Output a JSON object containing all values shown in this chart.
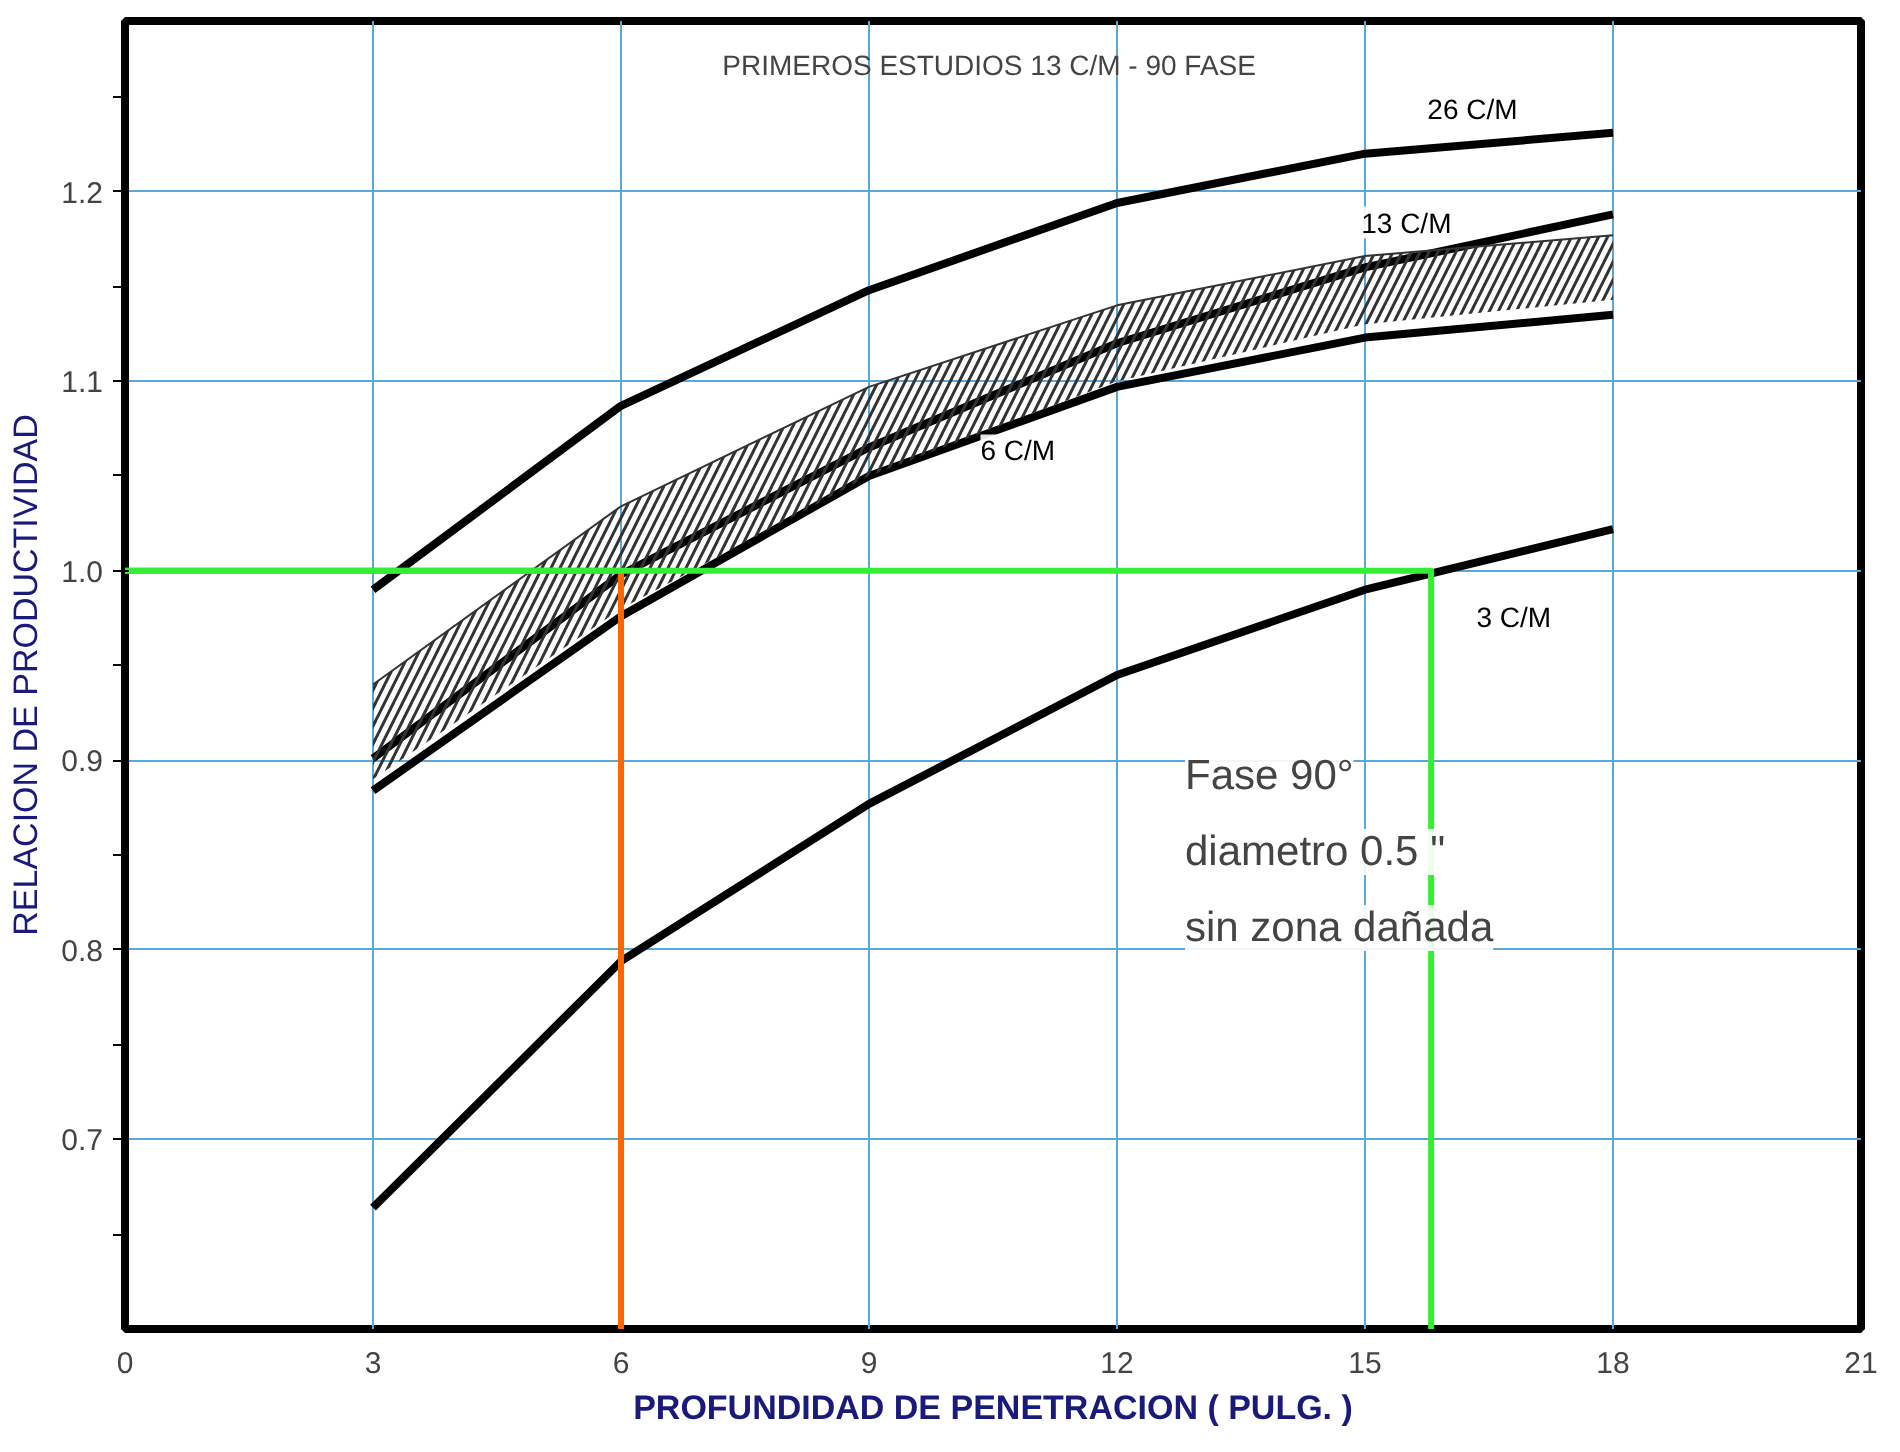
{
  "chart_data": {
    "type": "line",
    "title": "PRIMEROS ESTUDIOS 13 C/M - 90  FASE",
    "xlabel": "PROFUNDIDAD DE PENETRACION ( PULG. )",
    "ylabel": "RELACION DE PRODUCTIVIDAD",
    "x": [
      3,
      6,
      9,
      12,
      15,
      18
    ],
    "series": [
      {
        "name": "26 C/M",
        "color": "#000000",
        "values": [
          0.99,
          1.087,
          1.148,
          1.194,
          1.22,
          1.231
        ]
      },
      {
        "name": "13 C/M",
        "color": "#000000",
        "values": [
          0.901,
          0.998,
          1.065,
          1.12,
          1.16,
          1.188
        ]
      },
      {
        "name": "6 C/M",
        "color": "#000000",
        "values": [
          0.884,
          0.976,
          1.05,
          1.097,
          1.123,
          1.135
        ]
      },
      {
        "name": "3 C/M",
        "color": "#000000",
        "values": [
          0.664,
          0.794,
          0.877,
          0.945,
          0.99,
          1.022
        ]
      },
      {
        "color": "#333333",
        "values": [
          0.94,
          1.034,
          1.097,
          1.14,
          1.166,
          1.177
        ],
        "lower": [
          0.89,
          0.98,
          1.05,
          1.1,
          1.13,
          1.143
        ],
        "upper": [
          0.94,
          1.034,
          1.097,
          1.14,
          1.166,
          1.177
        ]
      },
      {
        "color": "#ff6600",
        "x": [
          0,
          6,
          6
        ],
        "values": [
          1.0,
          1.0,
          0.6
        ]
      },
      {
        "color": "#33ee33",
        "x": [
          0,
          15.8,
          15.8
        ],
        "values": [
          1.0,
          1.0,
          0.6
        ]
      }
    ],
    "annotations": [
      "Fase 90°",
      "diametro 0.5 \"",
      "sin zona dañada"
    ],
    "xlim": [
      0,
      21
    ],
    "xticks": [
      0,
      3,
      6,
      9,
      12,
      15,
      18,
      21
    ],
    "ylim": [
      0.6,
      1.29
    ],
    "yticks": [
      {
        "value": 0.65,
        "label": null
      },
      0.7,
      {
        "value": 0.75,
        "label": null
      },
      0.8,
      {
        "value": 0.85,
        "label": null
      },
      0.9,
      {
        "value": 0.95,
        "label": null
      },
      {
        "value": 1.0,
        "label": "1.0"
      },
      {
        "value": 1.05,
        "label": null
      },
      1.1,
      {
        "value": 1.15,
        "label": null
      },
      1.2,
      {
        "value": 1.25,
        "label": null
      }
    ],
    "grid": true,
    "marker": "none",
    "line_style": "solid"
  }
}
